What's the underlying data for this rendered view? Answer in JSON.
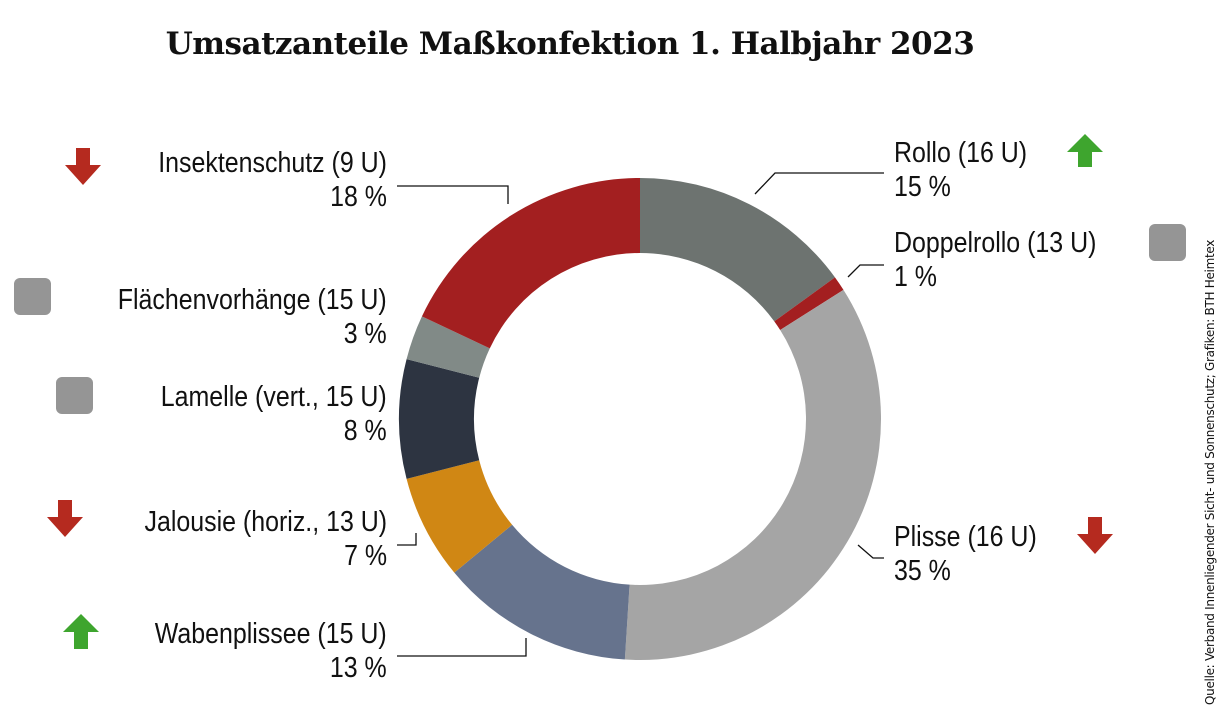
{
  "title": "Umsatzanteile Maßkonfektion 1. Halbjahr 2023",
  "source": "Quelle: Verband Innenliegender Sicht- und Sonnenschutz; Grafiken: BTH Heimtex",
  "colors": {
    "up_arrow": "#3ea52e",
    "down_arrow": "#b52a1f",
    "neutral_square": "#959595"
  },
  "labels": {
    "rollo": {
      "name": "Rollo (16 U)",
      "pct": "15 %",
      "trend": "up"
    },
    "doppelrollo": {
      "name": "Doppelrollo (13 U)",
      "pct": "1 %",
      "trend": "neutral"
    },
    "plisse": {
      "name": "Plisse (16 U)",
      "pct": "35 %",
      "trend": "down"
    },
    "wabenplissee": {
      "name": "Wabenplissee (15 U)",
      "pct": "13 %",
      "trend": "up"
    },
    "jalousie": {
      "name": "Jalousie (horiz., 13 U)",
      "pct": "7 %",
      "trend": "down"
    },
    "lamelle": {
      "name": "Lamelle (vert., 15 U)",
      "pct": "8 %",
      "trend": "neutral"
    },
    "flaechenvorhaenge": {
      "name": "Flächenvorhänge (15 U)",
      "pct": "3 %",
      "trend": "neutral"
    },
    "insektenschutz": {
      "name": "Insektenschutz (9 U)",
      "pct": "18 %",
      "trend": "down"
    }
  },
  "chart_data": {
    "type": "pie",
    "subtype": "donut",
    "title": "Umsatzanteile Maßkonfektion 1. Halbjahr 2023",
    "start_angle": "12 o'clock, clockwise",
    "categories": [
      "Rollo",
      "Doppelrollo",
      "Plisse",
      "Wabenplissee",
      "Jalousie (horiz.)",
      "Lamelle (vert.)",
      "Flächenvorhänge",
      "Insektenschutz"
    ],
    "values": [
      15,
      1,
      35,
      13,
      7,
      8,
      3,
      18
    ],
    "units_in_brackets": [
      16,
      13,
      16,
      15,
      13,
      15,
      15,
      9
    ],
    "trend": [
      "up",
      "neutral",
      "down",
      "up",
      "down",
      "neutral",
      "neutral",
      "down"
    ],
    "slice_colors": [
      "#6d7370",
      "#a31f20",
      "#a5a5a5",
      "#66738d",
      "#d08714",
      "#2d3441",
      "#818a87",
      "#a31f20"
    ],
    "value_suffix": " %",
    "legend": "none (direct labels with leader lines)",
    "source": "Quelle: Verband Innenliegender Sicht- und Sonnenschutz; Grafiken: BTH Heimtex"
  }
}
